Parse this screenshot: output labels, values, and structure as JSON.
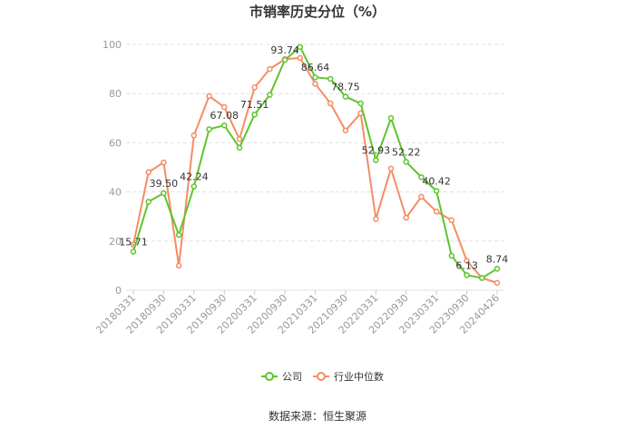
{
  "title": "市销率历史分位（%）",
  "source": "数据来源：恒生聚源",
  "chart_data": {
    "type": "line",
    "title": "市销率历史分位（%）",
    "ylim": [
      0,
      100
    ],
    "yticks": [
      0,
      20,
      40,
      60,
      80,
      100
    ],
    "grid": "horizontal dashed",
    "legend_position": "bottom-center",
    "x": [
      "20180331",
      "20180630",
      "20180930",
      "20181231",
      "20190331",
      "20190630",
      "20190930",
      "20191231",
      "20200331",
      "20200630",
      "20200930",
      "20201231",
      "20210331",
      "20210630",
      "20210930",
      "20211231",
      "20220331",
      "20220630",
      "20220930",
      "20221231",
      "20230331",
      "20230630",
      "20230930",
      "20231231",
      "20240426"
    ],
    "xtick_labels": [
      "20180331",
      "20180930",
      "20190331",
      "20190930",
      "20200331",
      "20200930",
      "20210331",
      "20210930",
      "20220331",
      "20220930",
      "20230331",
      "20230930",
      "20240426"
    ],
    "series": [
      {
        "name": "公司",
        "color": "#5ec42c",
        "values": [
          15.71,
          36.0,
          39.5,
          22.5,
          42.24,
          65.5,
          67.08,
          58.0,
          71.51,
          79.5,
          93.74,
          99.0,
          86.64,
          86.0,
          78.75,
          76.0,
          52.93,
          70.0,
          52.22,
          46.0,
          40.42,
          14.0,
          6.13,
          5.0,
          8.74
        ],
        "labels": {
          "0": "15.71",
          "2": "39.50",
          "4": "42.24",
          "6": "67.08",
          "8": "71.51",
          "10": "93.74",
          "12": "86.64",
          "14": "78.75",
          "16": "52.93",
          "18": "52.22",
          "20": "40.42",
          "22": "6.13",
          "24": "8.74"
        }
      },
      {
        "name": "行业中位数",
        "color": "#f58c64",
        "values": [
          18.5,
          48.0,
          52.0,
          10.0,
          63.0,
          79.0,
          74.5,
          61.5,
          82.5,
          90.0,
          94.0,
          94.5,
          84.0,
          76.0,
          65.0,
          72.0,
          29.0,
          49.5,
          29.5,
          38.0,
          32.0,
          28.5,
          12.0,
          5.0,
          3.0
        ]
      }
    ]
  }
}
